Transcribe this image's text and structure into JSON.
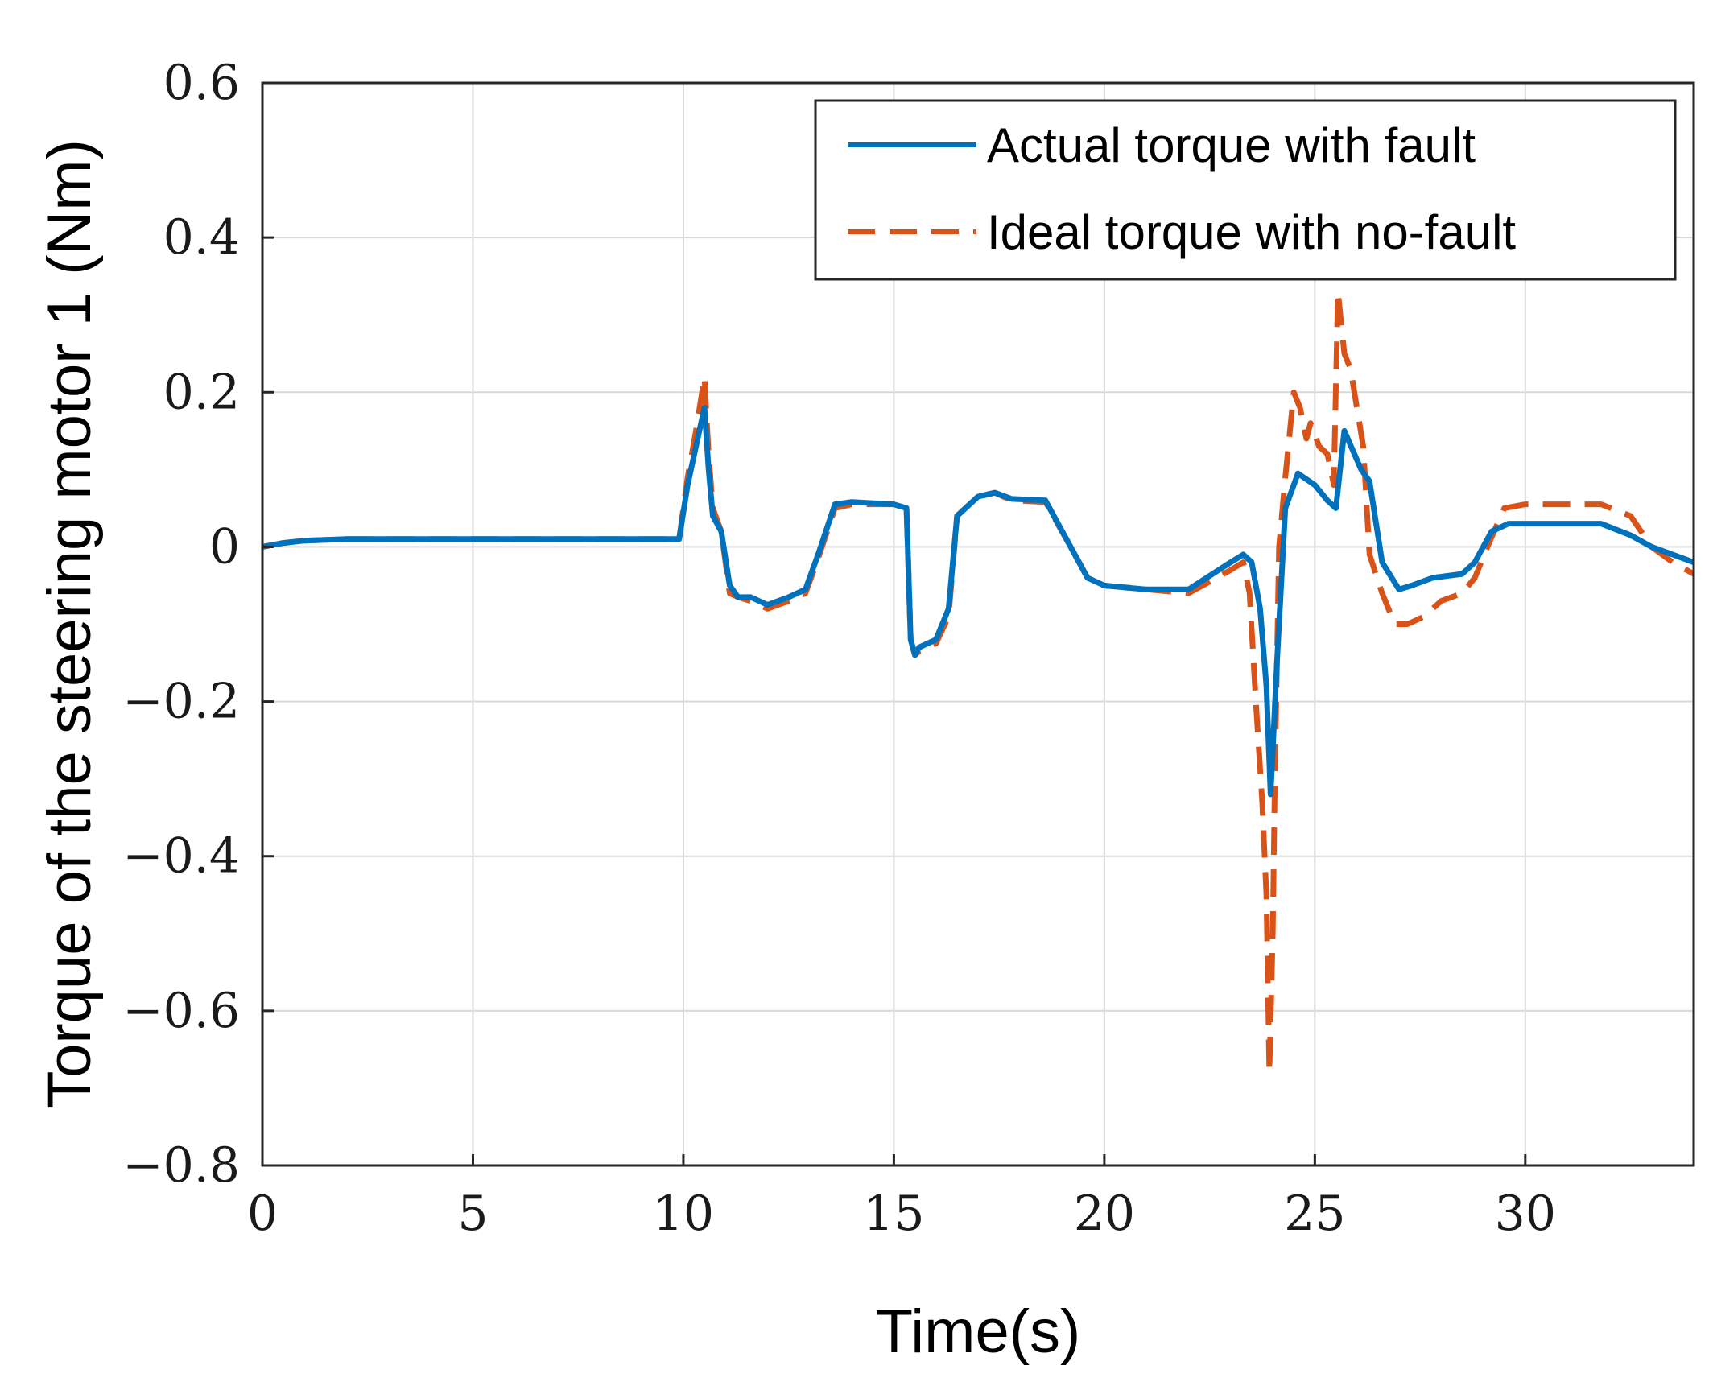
{
  "chart_data": {
    "type": "line",
    "title": "",
    "xlabel": "Time(s)",
    "ylabel": "Torque of the steering motor 1  (Nm)",
    "xlim": [
      0,
      34
    ],
    "ylim": [
      -0.8,
      0.6
    ],
    "grid": true,
    "legend_position": "top-right",
    "x_ticks": [
      0,
      5,
      10,
      15,
      20,
      25,
      30
    ],
    "x_tick_labels": [
      "0",
      "5",
      "10",
      "15",
      "20",
      "25",
      "30"
    ],
    "y_ticks": [
      0.6,
      0.4,
      0.2,
      0,
      -0.2,
      -0.4,
      -0.6,
      -0.8
    ],
    "y_tick_labels": [
      "0.6",
      "0.4",
      "0.2",
      "0",
      "−0.2",
      "−0.4",
      "−0.6",
      "−0.8"
    ],
    "series": [
      {
        "name": "Actual torque with fault",
        "color": "#0072BD",
        "style": "solid",
        "x": [
          0,
          0.5,
          1,
          2,
          5,
          9.9,
          10.1,
          10.3,
          10.5,
          10.6,
          10.7,
          10.9,
          11.1,
          11.3,
          11.6,
          12,
          12.5,
          12.9,
          13.2,
          13.6,
          14,
          15,
          15.3,
          15.4,
          15.5,
          15.6,
          16,
          16.3,
          16.5,
          17,
          17.4,
          17.8,
          18.6,
          19.2,
          19.6,
          20,
          21,
          22,
          23,
          23.3,
          23.5,
          23.7,
          23.85,
          23.95,
          24.1,
          24.3,
          24.6,
          25,
          25.3,
          25.5,
          25.7,
          26.1,
          26.3,
          26.6,
          27,
          27.3,
          27.8,
          28.5,
          28.8,
          29.2,
          29.6,
          30,
          31,
          31.8,
          32.5,
          33,
          33.5,
          34
        ],
        "y": [
          0,
          0.005,
          0.008,
          0.01,
          0.01,
          0.01,
          0.08,
          0.13,
          0.18,
          0.1,
          0.04,
          0.02,
          -0.05,
          -0.065,
          -0.065,
          -0.075,
          -0.065,
          -0.055,
          -0.01,
          0.055,
          0.058,
          0.055,
          0.05,
          -0.12,
          -0.14,
          -0.13,
          -0.12,
          -0.08,
          0.04,
          0.065,
          0.07,
          0.062,
          0.06,
          0.0,
          -0.04,
          -0.05,
          -0.055,
          -0.055,
          -0.02,
          -0.01,
          -0.02,
          -0.08,
          -0.18,
          -0.32,
          -0.15,
          0.05,
          0.095,
          0.08,
          0.06,
          0.05,
          0.15,
          0.1,
          0.085,
          -0.02,
          -0.055,
          -0.05,
          -0.04,
          -0.035,
          -0.02,
          0.02,
          0.03,
          0.03,
          0.03,
          0.03,
          0.015,
          0.0,
          -0.01,
          -0.02
        ]
      },
      {
        "name": "Ideal torque with no-fault",
        "color": "#D95319",
        "style": "dashed",
        "x": [
          0,
          0.5,
          1,
          2,
          5,
          9.9,
          10.1,
          10.3,
          10.5,
          10.6,
          10.7,
          10.9,
          11.1,
          11.3,
          11.6,
          12,
          12.5,
          12.9,
          13.2,
          13.6,
          14,
          15,
          15.3,
          15.4,
          15.5,
          15.6,
          16,
          16.3,
          16.5,
          17,
          17.4,
          17.8,
          18.6,
          19.2,
          19.6,
          20,
          21,
          22,
          23,
          23.3,
          23.45,
          23.6,
          23.75,
          23.85,
          23.92,
          24.0,
          24.05,
          24.15,
          24.3,
          24.5,
          24.65,
          24.8,
          24.9,
          25.1,
          25.3,
          25.45,
          25.55,
          25.7,
          25.85,
          26.0,
          26.15,
          26.3,
          26.6,
          26.9,
          27.2,
          27.6,
          28,
          28.5,
          28.8,
          29.1,
          29.5,
          30,
          31,
          31.8,
          32.5,
          33,
          33.5,
          34
        ],
        "y": [
          0,
          0.005,
          0.008,
          0.01,
          0.01,
          0.01,
          0.09,
          0.15,
          0.22,
          0.12,
          0.05,
          0.02,
          -0.06,
          -0.065,
          -0.07,
          -0.08,
          -0.07,
          -0.06,
          -0.015,
          0.05,
          0.055,
          0.055,
          0.05,
          -0.12,
          -0.14,
          -0.135,
          -0.125,
          -0.09,
          0.04,
          0.065,
          0.07,
          0.06,
          0.058,
          0.0,
          -0.04,
          -0.05,
          -0.055,
          -0.06,
          -0.03,
          -0.02,
          -0.06,
          -0.2,
          -0.33,
          -0.45,
          -0.68,
          -0.5,
          -0.3,
          0.0,
          0.09,
          0.2,
          0.18,
          0.14,
          0.16,
          0.13,
          0.12,
          0.08,
          0.33,
          0.25,
          0.23,
          0.18,
          0.13,
          -0.01,
          -0.06,
          -0.1,
          -0.1,
          -0.09,
          -0.07,
          -0.06,
          -0.04,
          0.0,
          0.05,
          0.055,
          0.055,
          0.055,
          0.04,
          0.0,
          -0.02,
          -0.035
        ]
      }
    ]
  }
}
